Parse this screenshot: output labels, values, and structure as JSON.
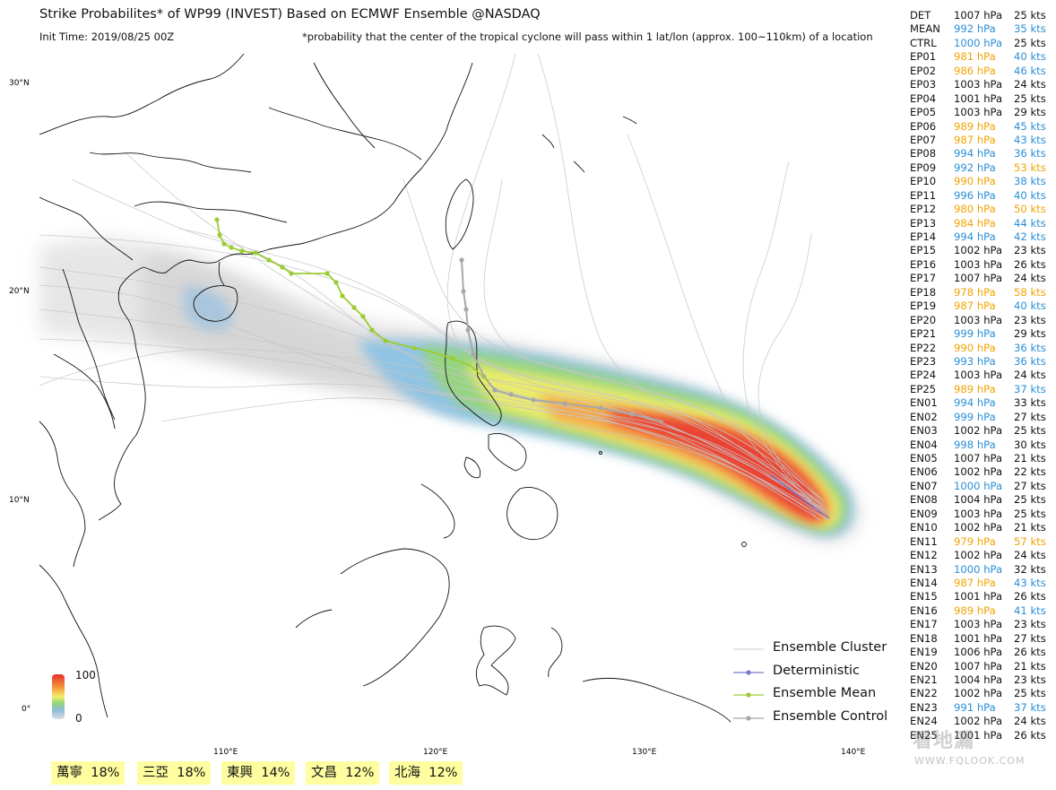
{
  "title": "Strike Probabilites* of WP99 (INVEST) Based on ECMWF Ensemble  @NASDAQ",
  "init_time": "Init Time: 2019/08/25 00Z",
  "footnote": "*probability that the center of the tropical cyclone will pass within 1 lat/lon (approx. 100~110km) of a location",
  "map": {
    "lat_labels": [
      "30°N",
      "20°N",
      "10°N",
      "0°"
    ],
    "lon_labels": [
      "110°E",
      "120°E",
      "130°E",
      "140°E"
    ],
    "colors": {
      "mean": "#9acd32",
      "control": "#a8a8a8",
      "deterministic": "#7777cc",
      "cluster": "#cccccc",
      "coast": "#111111",
      "warm": "#f2a300",
      "cool": "#2a8fd6"
    },
    "scale": {
      "max": "100",
      "min": "0"
    }
  },
  "table": [
    {
      "name": "DET",
      "pressure": "1007 hPa",
      "wind": "25 kts",
      "p_color": "normal",
      "w_color": "normal"
    },
    {
      "name": "MEAN",
      "pressure": "992 hPa",
      "wind": "35 kts",
      "p_color": "cool",
      "w_color": "cool"
    },
    {
      "name": "CTRL",
      "pressure": "1000 hPa",
      "wind": "25 kts",
      "p_color": "cool",
      "w_color": "normal"
    },
    {
      "name": "EP01",
      "pressure": "981 hPa",
      "wind": "40 kts",
      "p_color": "warm",
      "w_color": "cool"
    },
    {
      "name": "EP02",
      "pressure": "986 hPa",
      "wind": "46 kts",
      "p_color": "warm",
      "w_color": "cool"
    },
    {
      "name": "EP03",
      "pressure": "1003 hPa",
      "wind": "24 kts",
      "p_color": "normal",
      "w_color": "normal"
    },
    {
      "name": "EP04",
      "pressure": "1001 hPa",
      "wind": "25 kts",
      "p_color": "normal",
      "w_color": "normal"
    },
    {
      "name": "EP05",
      "pressure": "1003 hPa",
      "wind": "29 kts",
      "p_color": "normal",
      "w_color": "normal"
    },
    {
      "name": "EP06",
      "pressure": "989 hPa",
      "wind": "45 kts",
      "p_color": "warm",
      "w_color": "cool"
    },
    {
      "name": "EP07",
      "pressure": "987 hPa",
      "wind": "43 kts",
      "p_color": "warm",
      "w_color": "cool"
    },
    {
      "name": "EP08",
      "pressure": "994 hPa",
      "wind": "36 kts",
      "p_color": "cool",
      "w_color": "cool"
    },
    {
      "name": "EP09",
      "pressure": "992 hPa",
      "wind": "53 kts",
      "p_color": "cool",
      "w_color": "warm"
    },
    {
      "name": "EP10",
      "pressure": "990 hPa",
      "wind": "38 kts",
      "p_color": "warm",
      "w_color": "cool"
    },
    {
      "name": "EP11",
      "pressure": "996 hPa",
      "wind": "40 kts",
      "p_color": "cool",
      "w_color": "cool"
    },
    {
      "name": "EP12",
      "pressure": "980 hPa",
      "wind": "50 kts",
      "p_color": "warm",
      "w_color": "warm"
    },
    {
      "name": "EP13",
      "pressure": "984 hPa",
      "wind": "44 kts",
      "p_color": "warm",
      "w_color": "cool"
    },
    {
      "name": "EP14",
      "pressure": "994 hPa",
      "wind": "42 kts",
      "p_color": "cool",
      "w_color": "cool"
    },
    {
      "name": "EP15",
      "pressure": "1002 hPa",
      "wind": "23 kts",
      "p_color": "normal",
      "w_color": "normal"
    },
    {
      "name": "EP16",
      "pressure": "1003 hPa",
      "wind": "26 kts",
      "p_color": "normal",
      "w_color": "normal"
    },
    {
      "name": "EP17",
      "pressure": "1007 hPa",
      "wind": "24 kts",
      "p_color": "normal",
      "w_color": "normal"
    },
    {
      "name": "EP18",
      "pressure": "978 hPa",
      "wind": "58 kts",
      "p_color": "warm",
      "w_color": "warm"
    },
    {
      "name": "EP19",
      "pressure": "987 hPa",
      "wind": "40 kts",
      "p_color": "warm",
      "w_color": "cool"
    },
    {
      "name": "EP20",
      "pressure": "1003 hPa",
      "wind": "23 kts",
      "p_color": "normal",
      "w_color": "normal"
    },
    {
      "name": "EP21",
      "pressure": "999 hPa",
      "wind": "29 kts",
      "p_color": "cool",
      "w_color": "normal"
    },
    {
      "name": "EP22",
      "pressure": "990 hPa",
      "wind": "36 kts",
      "p_color": "warm",
      "w_color": "cool"
    },
    {
      "name": "EP23",
      "pressure": "993 hPa",
      "wind": "36 kts",
      "p_color": "cool",
      "w_color": "cool"
    },
    {
      "name": "EP24",
      "pressure": "1003 hPa",
      "wind": "24 kts",
      "p_color": "normal",
      "w_color": "normal"
    },
    {
      "name": "EP25",
      "pressure": "989 hPa",
      "wind": "37 kts",
      "p_color": "warm",
      "w_color": "cool"
    },
    {
      "name": "EN01",
      "pressure": "994 hPa",
      "wind": "33 kts",
      "p_color": "cool",
      "w_color": "normal"
    },
    {
      "name": "EN02",
      "pressure": "999 hPa",
      "wind": "27 kts",
      "p_color": "cool",
      "w_color": "normal"
    },
    {
      "name": "EN03",
      "pressure": "1002 hPa",
      "wind": "25 kts",
      "p_color": "normal",
      "w_color": "normal"
    },
    {
      "name": "EN04",
      "pressure": "998 hPa",
      "wind": "30 kts",
      "p_color": "cool",
      "w_color": "normal"
    },
    {
      "name": "EN05",
      "pressure": "1007 hPa",
      "wind": "21 kts",
      "p_color": "normal",
      "w_color": "normal"
    },
    {
      "name": "EN06",
      "pressure": "1002 hPa",
      "wind": "22 kts",
      "p_color": "normal",
      "w_color": "normal"
    },
    {
      "name": "EN07",
      "pressure": "1000 hPa",
      "wind": "27 kts",
      "p_color": "cool",
      "w_color": "normal"
    },
    {
      "name": "EN08",
      "pressure": "1004 hPa",
      "wind": "25 kts",
      "p_color": "normal",
      "w_color": "normal"
    },
    {
      "name": "EN09",
      "pressure": "1003 hPa",
      "wind": "25 kts",
      "p_color": "normal",
      "w_color": "normal"
    },
    {
      "name": "EN10",
      "pressure": "1002 hPa",
      "wind": "21 kts",
      "p_color": "normal",
      "w_color": "normal"
    },
    {
      "name": "EN11",
      "pressure": "979 hPa",
      "wind": "57 kts",
      "p_color": "warm",
      "w_color": "warm"
    },
    {
      "name": "EN12",
      "pressure": "1002 hPa",
      "wind": "24 kts",
      "p_color": "normal",
      "w_color": "normal"
    },
    {
      "name": "EN13",
      "pressure": "1000 hPa",
      "wind": "32 kts",
      "p_color": "cool",
      "w_color": "normal"
    },
    {
      "name": "EN14",
      "pressure": "987 hPa",
      "wind": "43 kts",
      "p_color": "warm",
      "w_color": "cool"
    },
    {
      "name": "EN15",
      "pressure": "1001 hPa",
      "wind": "26 kts",
      "p_color": "normal",
      "w_color": "normal"
    },
    {
      "name": "EN16",
      "pressure": "989 hPa",
      "wind": "41 kts",
      "p_color": "warm",
      "w_color": "cool"
    },
    {
      "name": "EN17",
      "pressure": "1003 hPa",
      "wind": "23 kts",
      "p_color": "normal",
      "w_color": "normal"
    },
    {
      "name": "EN18",
      "pressure": "1001 hPa",
      "wind": "27 kts",
      "p_color": "normal",
      "w_color": "normal"
    },
    {
      "name": "EN19",
      "pressure": "1006 hPa",
      "wind": "26 kts",
      "p_color": "normal",
      "w_color": "normal"
    },
    {
      "name": "EN20",
      "pressure": "1007 hPa",
      "wind": "21 kts",
      "p_color": "normal",
      "w_color": "normal"
    },
    {
      "name": "EN21",
      "pressure": "1004 hPa",
      "wind": "23 kts",
      "p_color": "normal",
      "w_color": "normal"
    },
    {
      "name": "EN22",
      "pressure": "1002 hPa",
      "wind": "25 kts",
      "p_color": "normal",
      "w_color": "normal"
    },
    {
      "name": "EN23",
      "pressure": "991 hPa",
      "wind": "37 kts",
      "p_color": "cool",
      "w_color": "cool"
    },
    {
      "name": "EN24",
      "pressure": "1002 hPa",
      "wind": "24 kts",
      "p_color": "normal",
      "w_color": "normal"
    },
    {
      "name": "EN25",
      "pressure": "1001 hPa",
      "wind": "26 kts",
      "p_color": "normal",
      "w_color": "normal"
    }
  ],
  "legend": [
    {
      "label": "Ensemble Cluster",
      "style": "cluster"
    },
    {
      "label": "Deterministic",
      "style": "deterministic"
    },
    {
      "label": "Ensemble Mean",
      "style": "mean"
    },
    {
      "label": "Ensemble Control",
      "style": "control"
    }
  ],
  "cities": [
    {
      "name": "萬寧",
      "prob": "18%"
    },
    {
      "name": "三亞",
      "prob": "18%"
    },
    {
      "name": "東興",
      "prob": "14%"
    },
    {
      "name": "文昌",
      "prob": "12%"
    },
    {
      "name": "北海",
      "prob": "12%"
    }
  ],
  "watermark": {
    "logo": "看地漏",
    "url": "WWW.FQLOOK.COM"
  }
}
